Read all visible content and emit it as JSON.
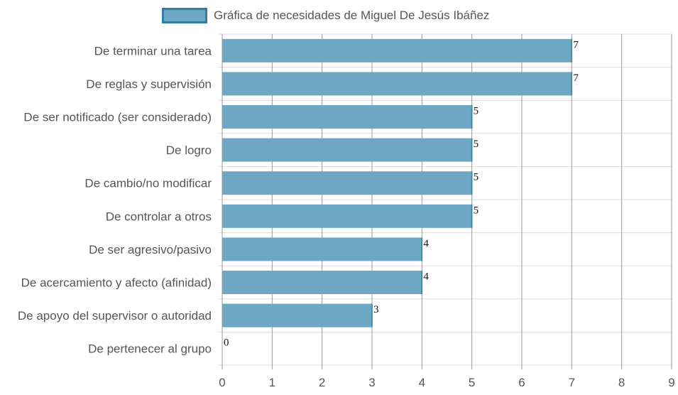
{
  "chart_data": {
    "type": "bar",
    "orientation": "horizontal",
    "categories": [
      "De terminar una tarea",
      "De reglas y supervisión",
      "De ser notificado (ser considerado)",
      "De logro",
      "De cambio/no modificar",
      "De controlar a otros",
      "De ser agresivo/pasivo",
      "De acercamiento y afecto (afinidad)",
      "De apoyo del supervisor o autoridad",
      "De pertenecer al grupo"
    ],
    "series": [
      {
        "name": "Gráfica de necesidades de Miguel De Jesús Ibáñez",
        "values": [
          7,
          7,
          5,
          5,
          5,
          5,
          4,
          4,
          3,
          0
        ]
      }
    ],
    "xlim": [
      0,
      9
    ],
    "xticks": [
      "0",
      "1",
      "2",
      "3",
      "4",
      "5",
      "6",
      "7",
      "8",
      "9"
    ],
    "grid": true,
    "legend_position": "top",
    "colors": {
      "bar_fill": "#6ea7c4",
      "bar_border": "#2f7fa3",
      "grid": "#dddddd",
      "vgrid": "#999999"
    }
  }
}
